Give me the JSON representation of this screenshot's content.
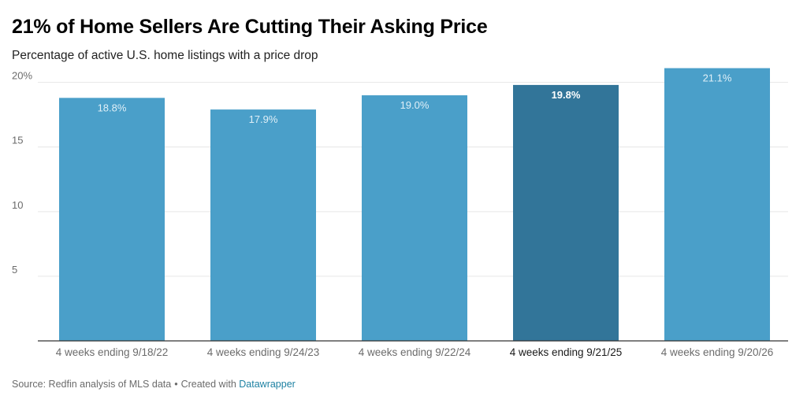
{
  "title": "21% of Home Sellers Are Cutting Their Asking Price",
  "subtitle": "Percentage of active U.S. home listings with a price drop",
  "footer": {
    "source": "Source: Redfin analysis of MLS data",
    "separator": "•",
    "created_with": "Created with",
    "tool": "Datawrapper"
  },
  "colors": {
    "bar": "#4a9fc9",
    "highlight_bar": "#327599",
    "grid": "#e6e6e6",
    "axis": "#333333",
    "tick_label": "#6b6b6b",
    "highlight_label": "#1a1a1a",
    "bar_label": "#dfeff7",
    "highlight_bar_label": "#ffffff"
  },
  "chart_data": {
    "type": "bar",
    "categories": [
      "4 weeks ending 9/18/22",
      "4 weeks ending 9/24/23",
      "4 weeks ending 9/22/24",
      "4 weeks ending 9/21/25",
      "4 weeks ending 9/20/26"
    ],
    "values": [
      18.8,
      17.9,
      19.0,
      19.8,
      21.1
    ],
    "value_labels": [
      "18.8%",
      "17.9%",
      "19.0%",
      "19.8%",
      "21.1%"
    ],
    "highlight_index": 3,
    "yticks": [
      5,
      10,
      15,
      20
    ],
    "ytick_labels": [
      "5",
      "10",
      "15",
      "20%"
    ],
    "ylim": [
      0,
      21.5
    ],
    "grid": true,
    "xlabel": "",
    "ylabel": ""
  }
}
